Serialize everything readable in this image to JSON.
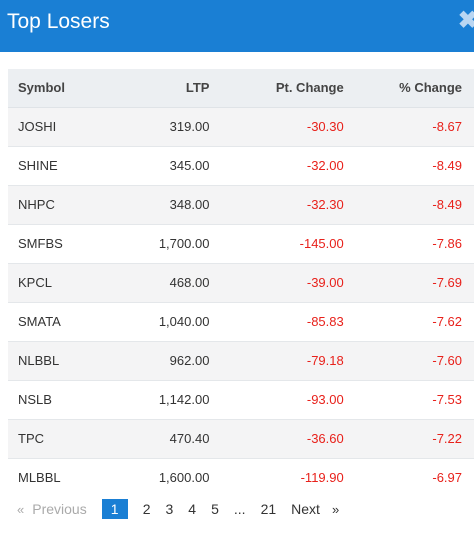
{
  "header": {
    "title": "Top Losers",
    "close_glyph": "✖"
  },
  "table": {
    "columns": [
      "Symbol",
      "LTP",
      "Pt. Change",
      "% Change"
    ],
    "rows": [
      {
        "symbol": "JOSHI",
        "ltp": "319.00",
        "pt_change": "-30.30",
        "pct_change": "-8.67"
      },
      {
        "symbol": "SHINE",
        "ltp": "345.00",
        "pt_change": "-32.00",
        "pct_change": "-8.49"
      },
      {
        "symbol": "NHPC",
        "ltp": "348.00",
        "pt_change": "-32.30",
        "pct_change": "-8.49"
      },
      {
        "symbol": "SMFBS",
        "ltp": "1,700.00",
        "pt_change": "-145.00",
        "pct_change": "-7.86"
      },
      {
        "symbol": "KPCL",
        "ltp": "468.00",
        "pt_change": "-39.00",
        "pct_change": "-7.69"
      },
      {
        "symbol": "SMATA",
        "ltp": "1,040.00",
        "pt_change": "-85.83",
        "pct_change": "-7.62"
      },
      {
        "symbol": "NLBBL",
        "ltp": "962.00",
        "pt_change": "-79.18",
        "pct_change": "-7.60"
      },
      {
        "symbol": "NSLB",
        "ltp": "1,142.00",
        "pt_change": "-93.00",
        "pct_change": "-7.53"
      },
      {
        "symbol": "TPC",
        "ltp": "470.40",
        "pt_change": "-36.60",
        "pct_change": "-7.22"
      },
      {
        "symbol": "MLBBL",
        "ltp": "1,600.00",
        "pt_change": "-119.90",
        "pct_change": "-6.97"
      }
    ]
  },
  "pagination": {
    "first_glyph": "«",
    "previous_label": "Previous",
    "pages": [
      "1",
      "2",
      "3",
      "4",
      "5",
      "...",
      "21"
    ],
    "current_page": "1",
    "next_label": "Next",
    "last_glyph": "»"
  },
  "colors": {
    "header_bg": "#1a7fd4",
    "negative": "#e8211b",
    "active_page": "#1a7fd4"
  }
}
